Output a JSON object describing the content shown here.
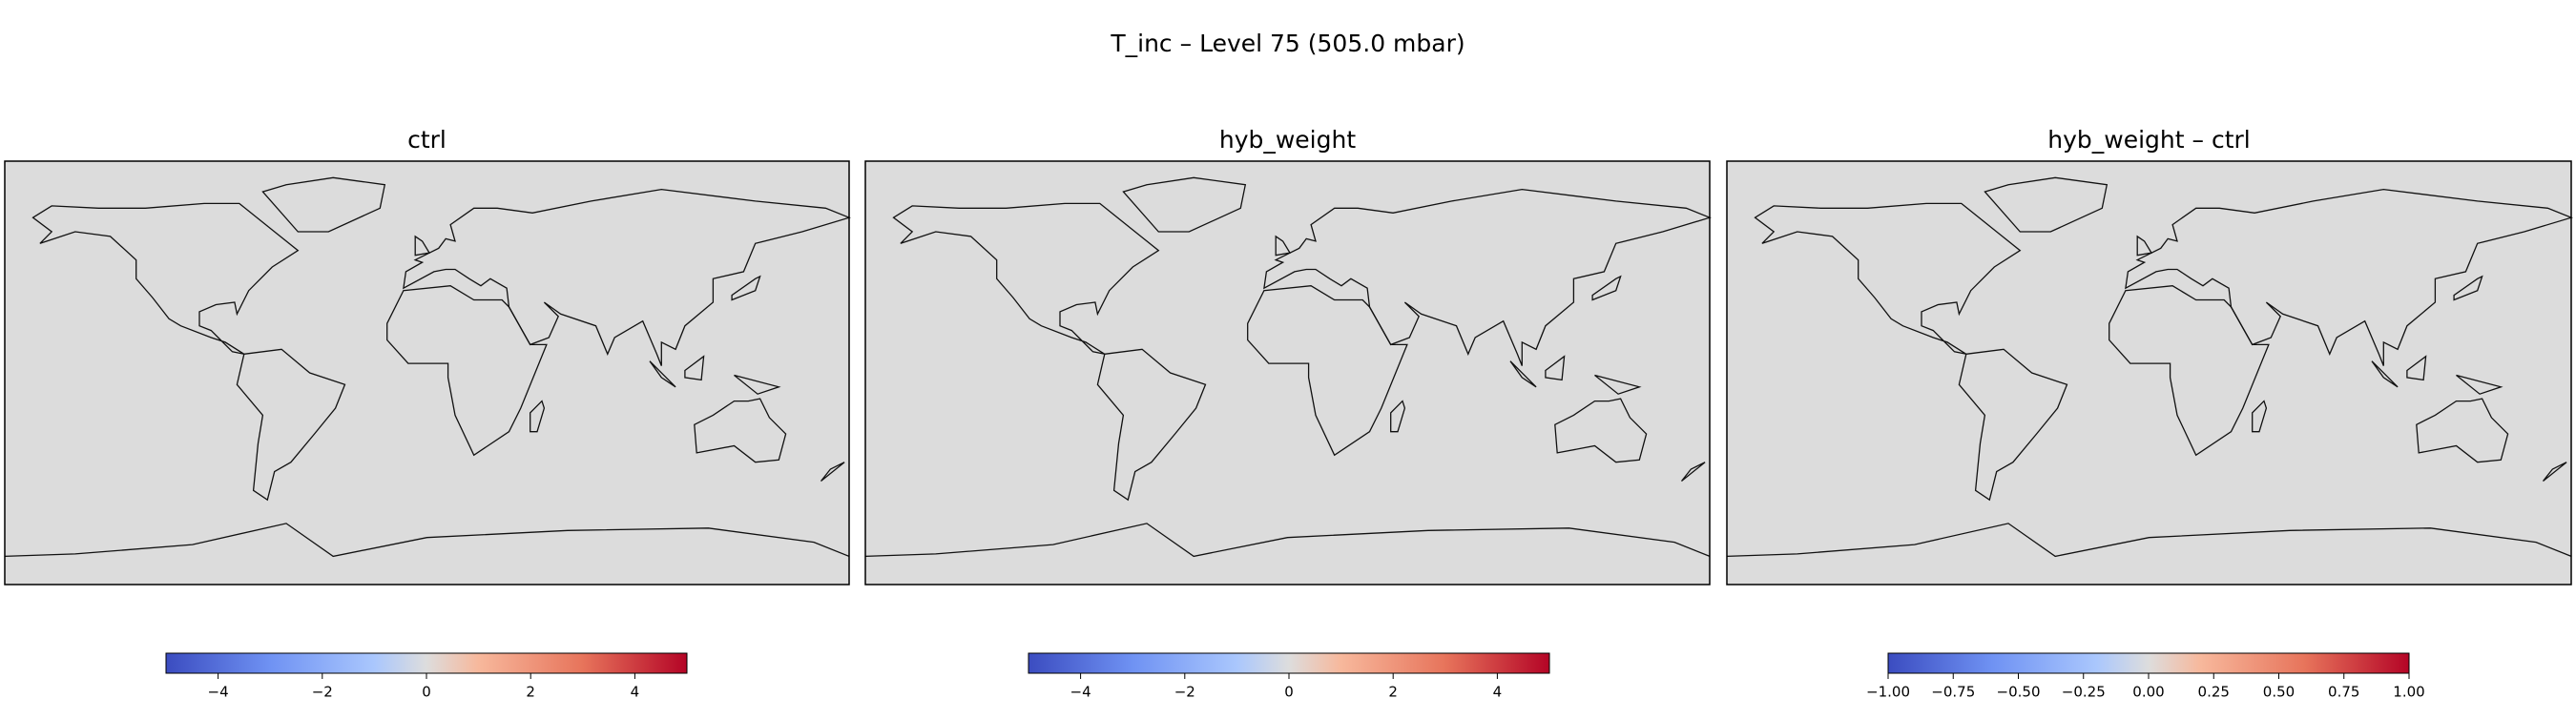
{
  "title": "T_inc – Level 75 (505.0 mbar)",
  "panels": [
    {
      "title": "ctrl",
      "colorbar": {
        "lim": [
          -5,
          5
        ],
        "ticks": [
          {
            "value": -4,
            "label": "−4"
          },
          {
            "value": -2,
            "label": "−2"
          },
          0,
          2,
          4
        ]
      }
    },
    {
      "title": "hyb_weight",
      "colorbar": {
        "lim": [
          -5,
          5
        ],
        "ticks": [
          {
            "value": -4,
            "label": "−4"
          },
          {
            "value": -2,
            "label": "−2"
          },
          0,
          2,
          4
        ]
      }
    },
    {
      "title": "hyb_weight – ctrl",
      "colorbar": {
        "lim": [
          -1,
          1
        ],
        "ticks": [
          {
            "value": -1,
            "label": "−1.00"
          },
          {
            "value": -0.75,
            "label": "−0.75"
          },
          {
            "value": -0.5,
            "label": "−0.50"
          },
          {
            "value": -0.25,
            "label": "−0.25"
          },
          {
            "value": 0,
            "label": "0.00"
          },
          0.25,
          {
            "value": 0.5,
            "label": "0.50"
          },
          0.75,
          {
            "value": 1,
            "label": "1.00"
          }
        ]
      }
    }
  ]
}
